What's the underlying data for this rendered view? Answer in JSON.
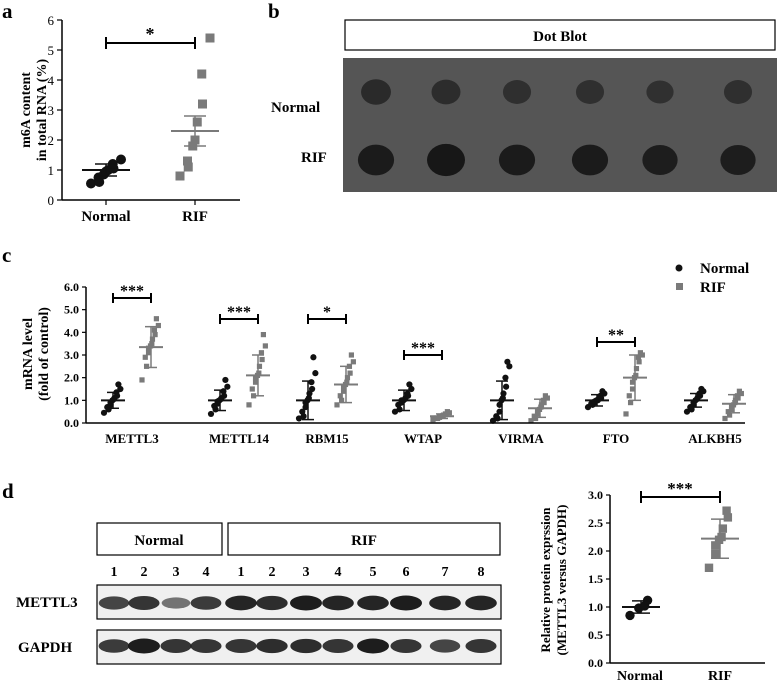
{
  "colors": {
    "normal": "#111111",
    "rif": "#7a7a7a",
    "blot_bg": "#4a4a4a",
    "blot_dot": "#141414"
  },
  "panel_labels": {
    "a": "a",
    "b": "b",
    "c": "c",
    "d": "d"
  },
  "chart_data": [
    {
      "panel": "a",
      "type": "scatter",
      "ylabel": [
        "m6A content",
        "in total RNA (%)"
      ],
      "categories": [
        "Normal",
        "RIF"
      ],
      "ylim": [
        0,
        6
      ],
      "yticks": [
        "0",
        "1",
        "2",
        "3",
        "4",
        "5",
        "6"
      ],
      "series": [
        {
          "name": "Normal",
          "marker": "circle",
          "values": [
            0.55,
            0.6,
            0.75,
            0.85,
            0.95,
            1.0,
            1.05,
            1.2,
            1.35
          ],
          "mean": 1.0,
          "sd_low": 0.8,
          "sd_high": 1.2
        },
        {
          "name": "RIF",
          "marker": "square",
          "values": [
            0.8,
            1.1,
            1.3,
            1.8,
            2.0,
            2.6,
            3.2,
            4.2,
            5.4
          ],
          "mean": 2.3,
          "sd_low": 1.8,
          "sd_high": 2.8
        }
      ],
      "significance": "*"
    },
    {
      "panel": "c",
      "type": "scatter",
      "ylabel": [
        "mRNA level",
        "(fold of control)"
      ],
      "categories": [
        "METTL3",
        "METTL14",
        "RBM15",
        "WTAP",
        "VIRMA",
        "FTO",
        "ALKBH5"
      ],
      "ylim": [
        0,
        6
      ],
      "yticks": [
        "0.0",
        "1.0",
        "2.0",
        "3.0",
        "4.0",
        "5.0",
        "6.0"
      ],
      "legend": [
        "Normal",
        "RIF"
      ],
      "series": [
        {
          "name": "Normal",
          "marker": "circle",
          "values": [
            [
              0.45,
              0.6,
              0.7,
              0.8,
              0.9,
              1.0,
              1.05,
              1.1,
              1.2,
              1.35,
              1.5,
              1.7
            ],
            [
              0.4,
              0.6,
              0.75,
              0.85,
              0.95,
              1.0,
              1.05,
              1.1,
              1.2,
              1.4,
              1.6,
              1.9
            ],
            [
              0.2,
              0.3,
              0.5,
              0.7,
              0.9,
              1.0,
              1.1,
              1.3,
              1.5,
              1.8,
              2.2,
              2.9
            ],
            [
              0.5,
              0.6,
              0.8,
              0.9,
              1.0,
              1.0,
              1.05,
              1.1,
              1.2,
              1.3,
              1.5,
              1.7
            ],
            [
              0.1,
              0.2,
              0.3,
              0.5,
              0.8,
              1.0,
              1.1,
              1.3,
              1.6,
              2.0,
              2.5,
              2.7
            ],
            [
              0.7,
              0.8,
              0.85,
              0.9,
              0.95,
              1.0,
              1.0,
              1.05,
              1.1,
              1.2,
              1.3,
              1.4
            ],
            [
              0.5,
              0.6,
              0.7,
              0.8,
              0.9,
              1.0,
              1.05,
              1.1,
              1.2,
              1.3,
              1.4,
              1.5
            ]
          ],
          "mean": [
            1.0,
            1.0,
            1.0,
            1.0,
            1.0,
            1.0,
            1.0
          ],
          "sd": [
            0.35,
            0.45,
            0.85,
            0.45,
            0.85,
            0.25,
            0.3
          ]
        },
        {
          "name": "RIF",
          "marker": "square",
          "values": [
            [
              1.9,
              2.5,
              2.9,
              3.1,
              3.3,
              3.4,
              3.5,
              3.7,
              3.9,
              4.1,
              4.3,
              4.6
            ],
            [
              0.8,
              1.2,
              1.5,
              1.8,
              2.0,
              2.1,
              2.2,
              2.5,
              2.8,
              3.1,
              3.4,
              3.9
            ],
            [
              0.8,
              1.0,
              1.2,
              1.4,
              1.6,
              1.7,
              1.8,
              2.0,
              2.2,
              2.5,
              2.7,
              3.0
            ],
            [
              0.15,
              0.2,
              0.22,
              0.25,
              0.28,
              0.3,
              0.32,
              0.35,
              0.38,
              0.4,
              0.45,
              0.5
            ],
            [
              0.1,
              0.2,
              0.3,
              0.4,
              0.5,
              0.6,
              0.7,
              0.8,
              0.9,
              1.0,
              1.1,
              1.2
            ],
            [
              0.4,
              0.9,
              1.2,
              1.5,
              1.8,
              2.0,
              2.1,
              2.4,
              2.7,
              2.9,
              3.0,
              3.1
            ],
            [
              0.2,
              0.35,
              0.5,
              0.6,
              0.7,
              0.8,
              0.9,
              1.0,
              1.1,
              1.2,
              1.3,
              1.4
            ]
          ],
          "mean": [
            3.35,
            2.1,
            1.7,
            0.3,
            0.65,
            2.0,
            0.85
          ],
          "sd": [
            0.9,
            0.9,
            0.8,
            0.1,
            0.4,
            1.0,
            0.4
          ]
        }
      ],
      "significance": [
        "***",
        "***",
        "*",
        "***",
        "",
        "**",
        ""
      ]
    },
    {
      "panel": "d",
      "type": "scatter",
      "ylabel": [
        "Relative protein exprssion",
        "(METTL3 versus GAPDH)"
      ],
      "categories": [
        "Normal",
        "RIF"
      ],
      "ylim": [
        0,
        3
      ],
      "yticks": [
        "0.0",
        "0.5",
        "1.0",
        "1.5",
        "2.0",
        "2.5",
        "3.0"
      ],
      "series": [
        {
          "name": "Normal",
          "marker": "circle",
          "values": [
            0.85,
            0.98,
            1.02,
            1.12
          ],
          "mean": 1.0,
          "sd_low": 0.89,
          "sd_high": 1.11
        },
        {
          "name": "RIF",
          "marker": "square",
          "values": [
            1.7,
            1.95,
            2.1,
            2.2,
            2.25,
            2.4,
            2.6,
            2.72
          ],
          "mean": 2.22,
          "sd_low": 1.87,
          "sd_high": 2.57
        }
      ],
      "significance": "***"
    }
  ],
  "dot_blot": {
    "title": "Dot Blot",
    "row_labels": [
      "Normal",
      "RIF"
    ],
    "intensity": [
      [
        0.55,
        0.5,
        0.45,
        0.45,
        0.4,
        0.45
      ],
      [
        0.9,
        1.0,
        0.9,
        0.9,
        0.85,
        0.85
      ]
    ]
  },
  "western_blot": {
    "group_labels": [
      "Normal",
      "RIF"
    ],
    "lane_numbers": [
      "1",
      "2",
      "3",
      "4",
      "1",
      "2",
      "3",
      "4",
      "5",
      "6",
      "7",
      "8"
    ],
    "row_labels": [
      "METTL3",
      "GAPDH"
    ],
    "intensity": [
      [
        0.75,
        0.85,
        0.45,
        0.8,
        0.95,
        0.9,
        1.0,
        0.95,
        0.95,
        1.0,
        0.95,
        0.95
      ],
      [
        0.8,
        1.0,
        0.85,
        0.85,
        0.85,
        0.9,
        0.9,
        0.85,
        1.0,
        0.85,
        0.75,
        0.85
      ]
    ]
  }
}
